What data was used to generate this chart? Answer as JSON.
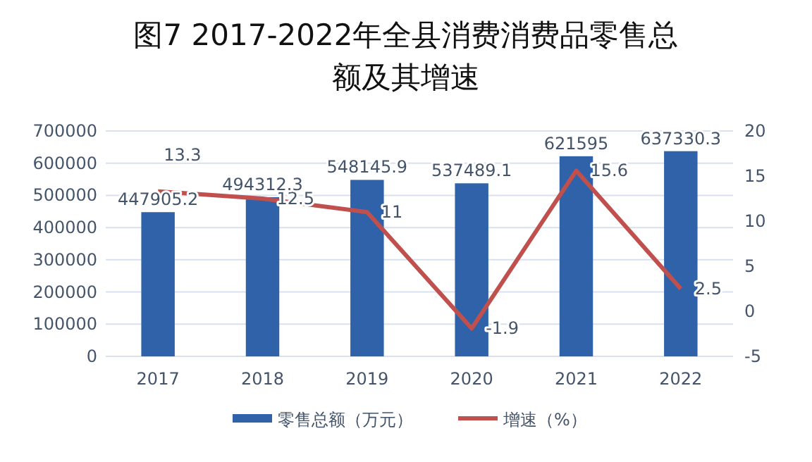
{
  "chart_data": {
    "type": "bar",
    "title": "图7 2017-2022年全县消费消费品零售总额及其增速",
    "categories": [
      "2017",
      "2018",
      "2019",
      "2020",
      "2021",
      "2022"
    ],
    "series": [
      {
        "name": "零售总额（万元）",
        "color": "#2f62a8",
        "values": [
          447905.2,
          494312.3,
          548145.9,
          537489.1,
          621595,
          637330.3
        ]
      },
      {
        "name": "增速（%）",
        "type": "line",
        "axis": "y2",
        "color": "#c0504d",
        "values": [
          13.3,
          12.5,
          11,
          -1.9,
          15.6,
          2.5
        ]
      }
    ],
    "ylim": [
      0,
      700000
    ],
    "yticks": [
      0,
      100000,
      200000,
      300000,
      400000,
      500000,
      600000,
      700000
    ],
    "y2lim": [
      -5,
      20
    ],
    "y2ticks": [
      -5,
      0,
      5,
      10,
      15,
      20
    ],
    "grid": "y",
    "legend": "bottom",
    "data_labels": true
  }
}
